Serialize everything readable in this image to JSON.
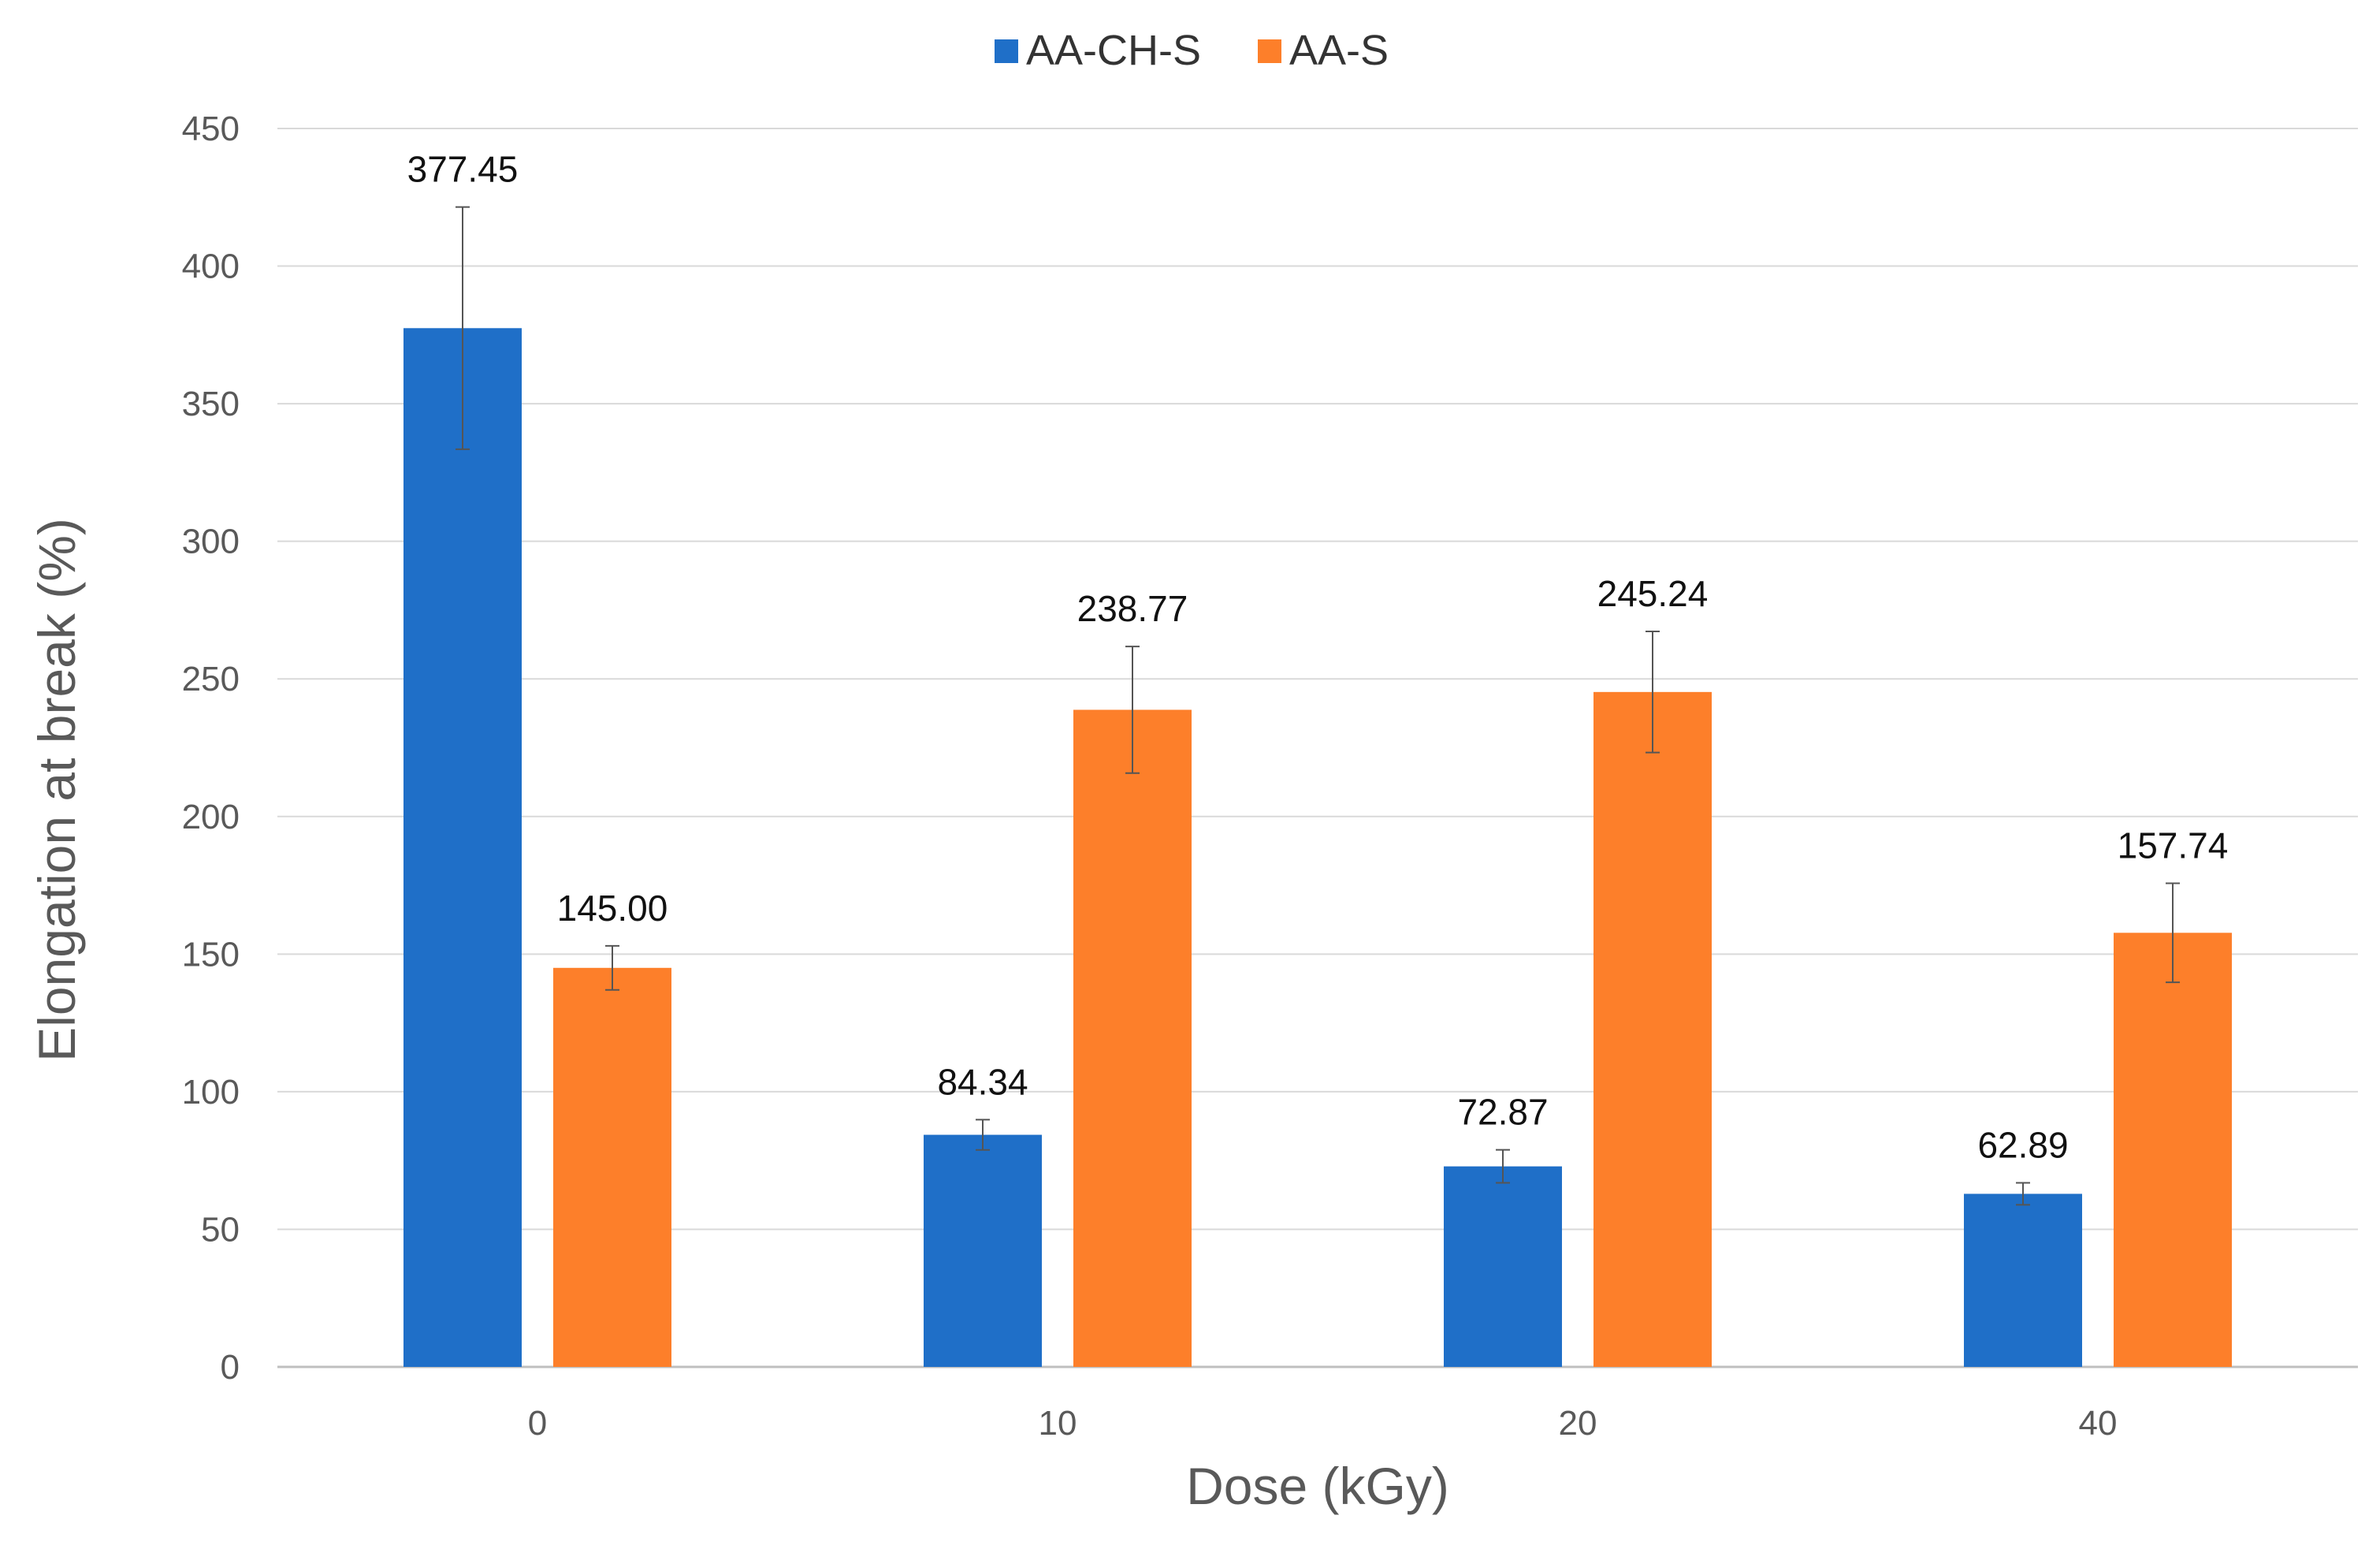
{
  "chart_data": {
    "type": "bar",
    "title": "",
    "xlabel": "Dose (kGy)",
    "ylabel": "Elongation at break (%)",
    "categories": [
      "0",
      "10",
      "20",
      "40"
    ],
    "ylim": [
      0,
      450
    ],
    "yticks": [
      0,
      50,
      100,
      150,
      200,
      250,
      300,
      350,
      400,
      450
    ],
    "grid": true,
    "legend_position": "top-center",
    "series": [
      {
        "name": "AA-CH-S",
        "color": "#1f6fc8",
        "values": [
          377.45,
          84.34,
          72.87,
          62.89
        ],
        "labels": [
          "377.45",
          "84.34",
          "72.87",
          "62.89"
        ],
        "errors": [
          44,
          5.5,
          6,
          4
        ]
      },
      {
        "name": "AA-S",
        "color": "#fd7f2a",
        "values": [
          145.0,
          238.77,
          245.24,
          157.74
        ],
        "labels": [
          "145.00",
          "238.77",
          "245.24",
          "157.74"
        ],
        "errors": [
          8,
          23,
          22,
          18
        ]
      }
    ]
  }
}
